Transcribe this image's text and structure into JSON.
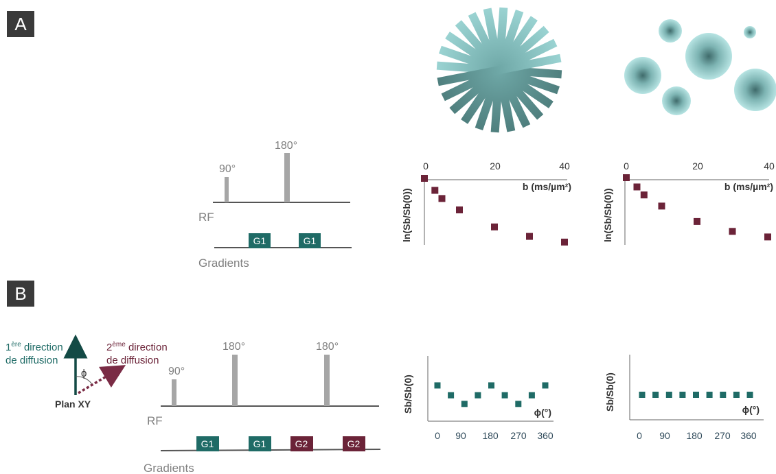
{
  "colors": {
    "teal": "#1f6b66",
    "maroon": "#6b2338",
    "grey_pulse": "#a6a6a6",
    "axis": "#666666",
    "dark_arrow": "#134a45"
  },
  "panel_a": {
    "label": "A",
    "pulse": {
      "rf_label": "RF",
      "gradients_label": "Gradients",
      "pulse90": "90°",
      "pulse180": "180°",
      "g1": "G1"
    },
    "plot_left": {
      "ylabel": "ln(Sb/Sb(0))",
      "xlabel": "b (ms/µm²)",
      "x_ticks": [
        "0",
        "20",
        "40"
      ]
    },
    "plot_right": {
      "ylabel": "ln(Sb/Sb(0))",
      "xlabel": "b (ms/µm²)",
      "x_ticks": [
        "0",
        "20",
        "40"
      ]
    }
  },
  "panel_b": {
    "label": "B",
    "dir1_sup": "ère",
    "dir1_prefix": "1",
    "dir1_line2": "de diffusion",
    "dir1_line1_rest": " direction",
    "dir2_sup": "ème",
    "dir2_prefix": "2",
    "dir2_line2": "de diffusion",
    "dir2_line1_rest": " direction",
    "phi": "ϕ",
    "plane": "Plan XY",
    "pulse": {
      "rf_label": "RF",
      "gradients_label": "Gradients",
      "pulse90": "90°",
      "pulse180a": "180°",
      "pulse180b": "180°",
      "g1": "G1",
      "g2": "G2"
    },
    "plot_left": {
      "ylabel": "Sb/Sb(0)",
      "xlabel": "ϕ(°)",
      "x_ticks": [
        "0",
        "90",
        "180",
        "270",
        "360"
      ]
    },
    "plot_right": {
      "ylabel": "Sb/Sb(0)",
      "xlabel": "ϕ(°)",
      "x_ticks": [
        "0",
        "90",
        "180",
        "270",
        "360"
      ]
    }
  },
  "chart_data": [
    {
      "type": "scatter",
      "xlabel": "b (ms/µm²)",
      "ylabel": "ln(Sb/Sb(0))",
      "xlim": [
        0,
        40
      ],
      "x_ticks": [
        0,
        20,
        40
      ],
      "x": [
        0,
        3,
        5,
        10,
        20,
        30,
        40
      ],
      "y": [
        0,
        -0.19,
        -0.32,
        -0.5,
        -0.77,
        -0.92,
        -1.01
      ]
    },
    {
      "type": "scatter",
      "xlabel": "b (ms/µm²)",
      "ylabel": "ln(Sb/Sb(0))",
      "xlim": [
        0,
        40
      ],
      "x_ticks": [
        0,
        20,
        40
      ],
      "x": [
        0,
        3,
        5,
        10,
        20,
        30,
        40
      ],
      "y": [
        0,
        -0.15,
        -0.28,
        -0.46,
        -0.71,
        -0.87,
        -0.96
      ]
    },
    {
      "type": "scatter",
      "xlabel": "ϕ(°)",
      "ylabel": "Sb/Sb(0)",
      "xlim": [
        0,
        360
      ],
      "x_ticks": [
        0,
        90,
        180,
        270,
        360
      ],
      "x": [
        0,
        45,
        90,
        135,
        180,
        225,
        270,
        315,
        360
      ],
      "y": [
        0.62,
        0.45,
        0.3,
        0.45,
        0.62,
        0.45,
        0.3,
        0.45,
        0.62
      ]
    },
    {
      "type": "scatter",
      "xlabel": "ϕ(°)",
      "ylabel": "Sb/Sb(0)",
      "xlim": [
        0,
        360
      ],
      "x_ticks": [
        0,
        90,
        180,
        270,
        360
      ],
      "x": [
        0,
        45,
        90,
        135,
        180,
        225,
        270,
        315,
        360
      ],
      "y": [
        0.45,
        0.45,
        0.45,
        0.45,
        0.45,
        0.45,
        0.45,
        0.45,
        0.45
      ]
    }
  ]
}
